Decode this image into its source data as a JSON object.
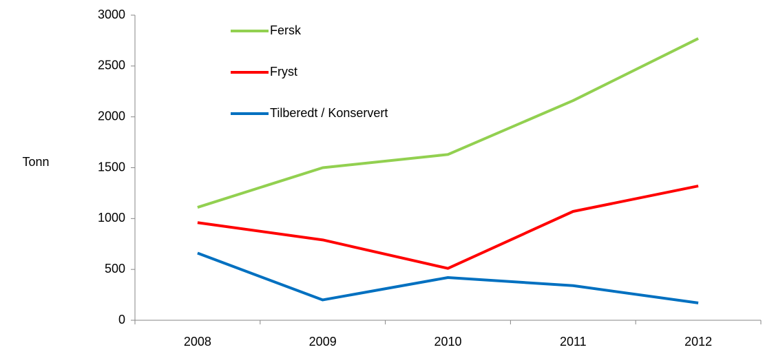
{
  "chart_data": {
    "type": "line",
    "y_label": "Tonn",
    "categories": [
      "2008",
      "2009",
      "2010",
      "2011",
      "2012"
    ],
    "series": [
      {
        "name": "Fersk",
        "color": "#92d050",
        "values": [
          1110,
          1500,
          1630,
          2160,
          2770
        ]
      },
      {
        "name": "Fryst",
        "color": "#ff0000",
        "values": [
          960,
          790,
          510,
          1070,
          1320
        ]
      },
      {
        "name": "Tilberedt / Konservert",
        "color": "#0070c0",
        "values": [
          660,
          200,
          420,
          340,
          170
        ]
      }
    ],
    "ylim": [
      0,
      3000
    ],
    "yticks": [
      0,
      500,
      1000,
      1500,
      2000,
      2500,
      3000
    ],
    "legend": "top-left",
    "grid": false
  }
}
